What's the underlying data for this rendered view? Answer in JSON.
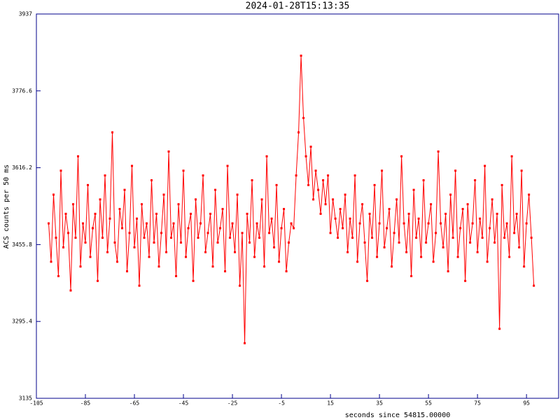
{
  "chart_data": {
    "type": "line",
    "title": "2024-01-28T15:13:35",
    "x_label": "seconds since 54815.00000",
    "y_label": "ACS counts per 50 ms",
    "xlim": [
      -105,
      108.1
    ],
    "xticks": [
      -105,
      -85,
      -65,
      -45,
      -25,
      -5,
      15,
      35,
      55,
      75,
      95
    ],
    "ylim": [
      3135,
      3937
    ],
    "yticks": [
      3135,
      3295.4,
      3455.8,
      3616.2,
      3776.6,
      3937
    ],
    "series": [
      {
        "color": "#ff0000",
        "x": [
          -100,
          -99,
          -98,
          -97,
          -96,
          -95,
          -94,
          -93,
          -92,
          -91,
          -90,
          -89,
          -88,
          -87,
          -86,
          -85,
          -84,
          -83,
          -82,
          -81,
          -80,
          -79,
          -78,
          -77,
          -76,
          -75,
          -74,
          -73,
          -72,
          -71,
          -70,
          -69,
          -68,
          -67,
          -66,
          -65,
          -64,
          -63,
          -62,
          -61,
          -60,
          -59,
          -58,
          -57,
          -56,
          -55,
          -54,
          -53,
          -52,
          -51,
          -50,
          -49,
          -48,
          -47,
          -46,
          -45,
          -44,
          -43,
          -42,
          -41,
          -40,
          -39,
          -38,
          -37,
          -36,
          -35,
          -34,
          -33,
          -32,
          -31,
          -30,
          -29,
          -28,
          -27,
          -26,
          -25,
          -24,
          -23,
          -22,
          -21,
          -20,
          -19,
          -18,
          -17,
          -16,
          -15,
          -14,
          -13,
          -12,
          -11,
          -10,
          -9,
          -8,
          -7,
          -6,
          -5,
          -4,
          -3,
          -2,
          -1,
          0,
          1,
          2,
          3,
          4,
          5,
          6,
          7,
          8,
          9,
          10,
          11,
          12,
          13,
          14,
          15,
          16,
          17,
          18,
          19,
          20,
          21,
          22,
          23,
          24,
          25,
          26,
          27,
          28,
          29,
          30,
          31,
          32,
          33,
          34,
          35,
          36,
          37,
          38,
          39,
          40,
          41,
          42,
          43,
          44,
          45,
          46,
          47,
          48,
          49,
          50,
          51,
          52,
          53,
          54,
          55,
          56,
          57,
          58,
          59,
          60,
          61,
          62,
          63,
          64,
          65,
          66,
          67,
          68,
          69,
          70,
          71,
          72,
          73,
          74,
          75,
          76,
          77,
          78,
          79,
          80,
          81,
          82,
          83,
          84,
          85,
          86,
          87,
          88,
          89,
          90,
          91,
          92,
          93,
          94,
          95,
          96,
          97,
          98
        ],
        "values": [
          3500,
          3420,
          3560,
          3470,
          3390,
          3610,
          3450,
          3520,
          3480,
          3360,
          3540,
          3470,
          3640,
          3410,
          3500,
          3460,
          3580,
          3430,
          3490,
          3520,
          3380,
          3550,
          3470,
          3600,
          3440,
          3510,
          3690,
          3460,
          3420,
          3530,
          3490,
          3570,
          3400,
          3480,
          3620,
          3450,
          3510,
          3370,
          3540,
          3470,
          3500,
          3430,
          3590,
          3460,
          3520,
          3410,
          3480,
          3560,
          3440,
          3650,
          3470,
          3500,
          3390,
          3540,
          3460,
          3610,
          3430,
          3490,
          3520,
          3380,
          3550,
          3470,
          3500,
          3600,
          3440,
          3480,
          3520,
          3410,
          3570,
          3460,
          3490,
          3530,
          3400,
          3620,
          3470,
          3500,
          3440,
          3560,
          3370,
          3480,
          3250,
          3520,
          3460,
          3590,
          3430,
          3500,
          3470,
          3550,
          3410,
          3640,
          3480,
          3510,
          3450,
          3580,
          3420,
          3490,
          3530,
          3400,
          3460,
          3500,
          3490,
          3600,
          3690,
          3850,
          3720,
          3640,
          3580,
          3660,
          3550,
          3610,
          3570,
          3520,
          3590,
          3540,
          3600,
          3480,
          3550,
          3510,
          3470,
          3530,
          3490,
          3560,
          3440,
          3510,
          3470,
          3600,
          3420,
          3500,
          3540,
          3460,
          3380,
          3520,
          3470,
          3580,
          3430,
          3500,
          3610,
          3450,
          3490,
          3530,
          3410,
          3480,
          3550,
          3460,
          3640,
          3500,
          3440,
          3520,
          3390,
          3570,
          3470,
          3510,
          3430,
          3590,
          3460,
          3500,
          3540,
          3420,
          3480,
          3650,
          3500,
          3450,
          3520,
          3400,
          3560,
          3470,
          3610,
          3430,
          3490,
          3530,
          3380,
          3540,
          3460,
          3500,
          3590,
          3440,
          3510,
          3470,
          3620,
          3420,
          3490,
          3550,
          3460,
          3520,
          3280,
          3580,
          3470,
          3500,
          3430,
          3640,
          3480,
          3520,
          3450,
          3610,
          3410,
          3500,
          3560,
          3470,
          3370
        ]
      }
    ]
  }
}
